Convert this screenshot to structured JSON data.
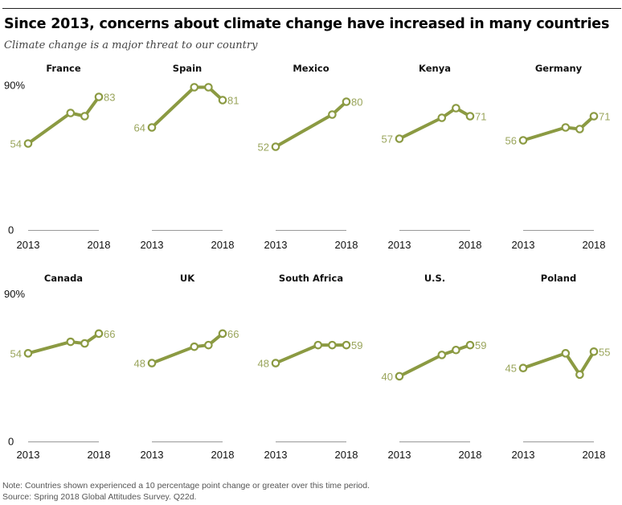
{
  "title": "Since 2013, concerns about climate change have increased in many countries",
  "subtitle": "Climate change is a major threat to our country",
  "notes": {
    "note": "Note: Countries shown experienced a 10 percentage point change or greater over this time period.",
    "source": "Source: Spring 2018 Global Attitudes Survey. Q22d."
  },
  "colors": {
    "line": "#8b9a42",
    "label": "#9aa55c",
    "axis": "#999999",
    "text": "#111111"
  },
  "chart_data": {
    "type": "line",
    "title": "Since 2013, concerns about climate change have increased in many countries",
    "subtitle": "Climate change is a major threat to our country",
    "xlabel": "",
    "ylabel": "",
    "ylim": [
      0,
      90
    ],
    "y_tick_labels": [
      "0",
      "90%"
    ],
    "xlim": [
      2013,
      2018
    ],
    "x_tick_labels": [
      "2013",
      "2018"
    ],
    "grid": false,
    "legend": "none",
    "panels": [
      {
        "name": "France",
        "x": [
          2013,
          2016,
          2017,
          2018
        ],
        "values": [
          54,
          73,
          71,
          83
        ],
        "first_label": "54",
        "last_label": "83"
      },
      {
        "name": "Spain",
        "x": [
          2013,
          2016,
          2017,
          2018
        ],
        "values": [
          64,
          89,
          89,
          81
        ],
        "first_label": "64",
        "last_label": "81"
      },
      {
        "name": "Mexico",
        "x": [
          2013,
          2017,
          2018
        ],
        "values": [
          52,
          72,
          80
        ],
        "first_label": "52",
        "last_label": "80"
      },
      {
        "name": "Kenya",
        "x": [
          2013,
          2016,
          2017,
          2018
        ],
        "values": [
          57,
          70,
          76,
          71
        ],
        "first_label": "57",
        "last_label": "71"
      },
      {
        "name": "Germany",
        "x": [
          2013,
          2016,
          2017,
          2018
        ],
        "values": [
          56,
          64,
          63,
          71
        ],
        "first_label": "56",
        "last_label": "71"
      },
      {
        "name": "Canada",
        "x": [
          2013,
          2016,
          2017,
          2018
        ],
        "values": [
          54,
          61,
          60,
          66
        ],
        "first_label": "54",
        "last_label": "66"
      },
      {
        "name": "UK",
        "x": [
          2013,
          2016,
          2017,
          2018
        ],
        "values": [
          48,
          58,
          59,
          66
        ],
        "first_label": "48",
        "last_label": "66"
      },
      {
        "name": "South Africa",
        "x": [
          2013,
          2016,
          2017,
          2018
        ],
        "values": [
          48,
          59,
          59,
          59
        ],
        "first_label": "48",
        "last_label": "59"
      },
      {
        "name": "U.S.",
        "x": [
          2013,
          2016,
          2017,
          2018
        ],
        "values": [
          40,
          53,
          56,
          59
        ],
        "first_label": "40",
        "last_label": "59"
      },
      {
        "name": "Poland",
        "x": [
          2013,
          2016,
          2017,
          2018
        ],
        "values": [
          45,
          54,
          41,
          55
        ],
        "first_label": "45",
        "last_label": "55"
      }
    ]
  }
}
